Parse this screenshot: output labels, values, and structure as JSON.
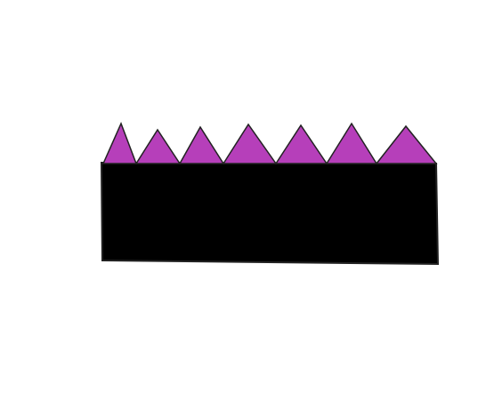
{
  "drawing": {
    "base_color": "#000000",
    "spike_color": "#b63fba",
    "outline_color": "#222222",
    "spike_count": 7
  }
}
